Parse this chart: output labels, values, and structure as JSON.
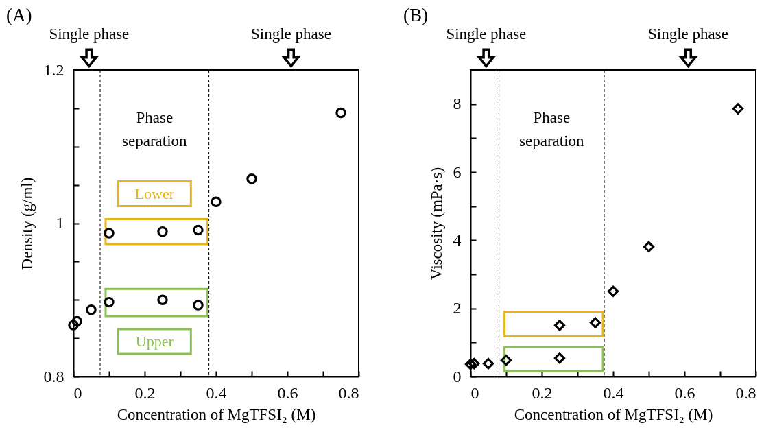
{
  "chart_data": [
    {
      "type": "scatter",
      "title": "(A)",
      "xlabel": "Concentration of MgTFSI₂ (M)",
      "ylabel": "Density (g/ml)",
      "marker": "circle",
      "grid": false,
      "xlim": [
        0,
        0.8
      ],
      "xticks": [
        0,
        {
          "value": 0.1,
          "label": null
        },
        0.2,
        {
          "value": 0.3,
          "label": null
        },
        0.4,
        {
          "value": 0.5,
          "label": null
        },
        0.6,
        {
          "value": 0.7,
          "label": null
        },
        0.8
      ],
      "ylim": [
        0.8,
        1.2
      ],
      "yticks": [
        0.8,
        {
          "value": 0.85,
          "label": null
        },
        {
          "value": 0.9,
          "label": null
        },
        {
          "value": 0.95,
          "label": null
        },
        1,
        {
          "value": 1.05,
          "label": null
        },
        {
          "value": 1.1,
          "label": null
        },
        {
          "value": 1.15,
          "label": null
        },
        1.2
      ],
      "series": [
        {
          "color": "#000000",
          "x": [
            0,
            0.01,
            0.05,
            0.4,
            0.5,
            0.75
          ],
          "values": [
            0.867,
            0.872,
            0.887,
            1.028,
            1.058,
            1.144
          ]
        },
        {
          "name": "Lower",
          "color": "#000000",
          "x": [
            0.1,
            0.25,
            0.35
          ],
          "values": [
            0.987,
            0.989,
            0.991
          ]
        },
        {
          "name": "Upper",
          "color": "#000000",
          "x": [
            0.1,
            0.25,
            0.35
          ],
          "values": [
            0.897,
            0.9,
            0.893
          ]
        }
      ],
      "ref_lines": [
        {
          "axis": "x",
          "value": 0.075,
          "color": "#000000",
          "line_style": "dashed"
        },
        {
          "axis": "x",
          "value": 0.38,
          "color": "#000000",
          "line_style": "dashed"
        }
      ],
      "annotations": [
        "Single phase",
        "Single phase",
        "Phase\nseparation"
      ]
    },
    {
      "type": "scatter",
      "title": "(B)",
      "xlabel": "Concentration of MgTFSI₂ (M)",
      "ylabel": "Viscosity (mPa·s)",
      "marker": "diamond",
      "grid": false,
      "xlim": [
        0,
        0.8
      ],
      "xticks": [
        0,
        {
          "value": 0.1,
          "label": null
        },
        0.2,
        {
          "value": 0.3,
          "label": null
        },
        0.4,
        {
          "value": 0.5,
          "label": null
        },
        0.6,
        {
          "value": 0.7,
          "label": null
        },
        0.8
      ],
      "ylim": [
        0,
        9
      ],
      "yticks": [
        0,
        {
          "value": 1,
          "label": null
        },
        2,
        {
          "value": 3,
          "label": null
        },
        4,
        {
          "value": 5,
          "label": null
        },
        6,
        {
          "value": 7,
          "label": null
        },
        8
      ],
      "series": [
        {
          "color": "#000000",
          "x": [
            0,
            0.01,
            0.05,
            0.4,
            0.5,
            0.75
          ],
          "values": [
            0.36,
            0.38,
            0.38,
            2.5,
            3.81,
            7.86
          ]
        },
        {
          "color": "#000000",
          "x": [
            0.25,
            0.35
          ],
          "values": [
            1.5,
            1.58
          ]
        },
        {
          "color": "#000000",
          "x": [
            0.1,
            0.25
          ],
          "values": [
            0.48,
            0.54
          ]
        }
      ],
      "ref_lines": [
        {
          "axis": "x",
          "value": 0.08,
          "color": "#000000",
          "line_style": "dashed"
        },
        {
          "axis": "x",
          "value": 0.375,
          "color": "#000000",
          "line_style": "dashed"
        }
      ],
      "annotations": [
        "Single phase",
        "Single phase",
        "Phase\nseparation"
      ]
    }
  ]
}
